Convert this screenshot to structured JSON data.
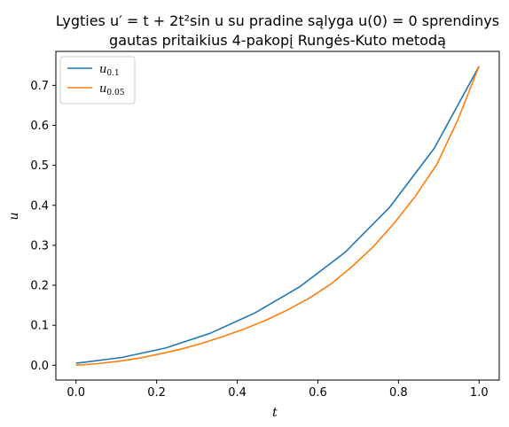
{
  "chart_data": {
    "type": "line",
    "title_lines": [
      "Lygties u′ = t + 2t²sin u su pradine sąlyga u(0) = 0 sprendinys",
      "gautas pritaikius 4-pakopį Rungės-Kuto metodą"
    ],
    "xlabel": "t",
    "ylabel": "u",
    "xlim": [
      -0.05,
      1.05
    ],
    "ylim": [
      -0.037,
      0.785
    ],
    "xticks": [
      0.0,
      0.2,
      0.4,
      0.6,
      0.8,
      1.0
    ],
    "xtick_labels": [
      "0.0",
      "0.2",
      "0.4",
      "0.6",
      "0.8",
      "1.0"
    ],
    "yticks": [
      0.0,
      0.1,
      0.2,
      0.3,
      0.4,
      0.5,
      0.6,
      0.7
    ],
    "ytick_labels": [
      "0.0",
      "0.1",
      "0.2",
      "0.3",
      "0.4",
      "0.5",
      "0.6",
      "0.7"
    ],
    "grid": false,
    "legend_position": "top-left",
    "series": [
      {
        "name": "u",
        "subscript": "0.1",
        "color": "#1f77b4",
        "x": [
          0.0,
          0.111,
          0.222,
          0.333,
          0.444,
          0.556,
          0.667,
          0.778,
          0.889,
          1.0
        ],
        "y": [
          0.005,
          0.019,
          0.043,
          0.08,
          0.131,
          0.197,
          0.282,
          0.395,
          0.543,
          0.748
        ]
      },
      {
        "name": "u",
        "subscript": "0.05",
        "color": "#ff7f0e",
        "x": [
          0.0,
          0.053,
          0.105,
          0.158,
          0.211,
          0.263,
          0.316,
          0.368,
          0.421,
          0.474,
          0.526,
          0.579,
          0.632,
          0.684,
          0.737,
          0.789,
          0.842,
          0.895,
          0.947,
          1.0
        ],
        "y": [
          0.0,
          0.004,
          0.01,
          0.018,
          0.029,
          0.041,
          0.056,
          0.073,
          0.092,
          0.114,
          0.139,
          0.168,
          0.203,
          0.246,
          0.296,
          0.355,
          0.423,
          0.502,
          0.613,
          0.748
        ]
      }
    ]
  }
}
